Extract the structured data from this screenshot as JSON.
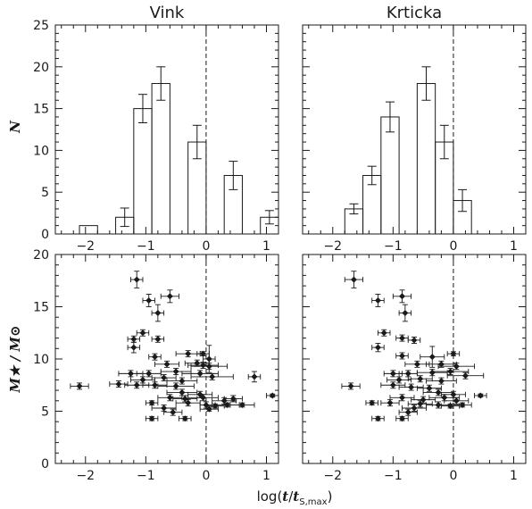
{
  "figure": {
    "xlabel_prefix": "log(",
    "xlabel_t": "t",
    "xlabel_slash": "/",
    "xlabel_ts": "t",
    "xlabel_sub": "S,max",
    "xlabel_suffix": ")",
    "ylabel_top": "N",
    "ylabel_bottom": "M★ / M⊙"
  },
  "chart_data": [
    {
      "type": "bar",
      "title": "Vink",
      "ylabel": "N",
      "xlim": [
        -2.5,
        1.2
      ],
      "ylim": [
        0,
        25
      ],
      "bins": [
        [
          -2.1,
          -1.8
        ],
        [
          -1.5,
          -1.2
        ],
        [
          -1.2,
          -0.9
        ],
        [
          -0.9,
          -0.6
        ],
        [
          -0.3,
          0.0
        ],
        [
          0.3,
          0.6
        ],
        [
          0.9,
          1.2
        ]
      ],
      "values": [
        1,
        2,
        15,
        18,
        11,
        7,
        2
      ],
      "errors": [
        0,
        1.1,
        1.7,
        2.0,
        2.0,
        1.7,
        0.8
      ],
      "reference_line": 0,
      "xticks": [
        -2,
        -1,
        0,
        1
      ],
      "yticks": [
        0,
        5,
        10,
        15,
        20,
        25
      ]
    },
    {
      "type": "bar",
      "title": "Krticka",
      "xlim": [
        -2.5,
        1.2
      ],
      "ylim": [
        0,
        25
      ],
      "bins": [
        [
          -1.8,
          -1.5
        ],
        [
          -1.5,
          -1.2
        ],
        [
          -1.2,
          -0.9
        ],
        [
          -0.6,
          -0.3
        ],
        [
          -0.3,
          0.0
        ],
        [
          0.0,
          0.3
        ]
      ],
      "values": [
        3,
        7,
        14,
        18,
        11,
        4
      ],
      "errors": [
        0.6,
        1.1,
        1.8,
        2.0,
        2.0,
        1.3
      ],
      "reference_line": 0,
      "xticks": [
        -2,
        -1,
        0,
        1
      ],
      "yticks": [
        0,
        5,
        10,
        15,
        20,
        25
      ]
    },
    {
      "type": "scatter",
      "xlabel": "log(t/tS,max)",
      "ylabel": "M★ / M⊙",
      "xlim": [
        -2.5,
        1.2
      ],
      "ylim": [
        0,
        20
      ],
      "reference_line": 0,
      "xticks": [
        -2,
        -1,
        0,
        1
      ],
      "yticks": [
        0,
        5,
        10,
        15,
        20
      ],
      "points": [
        {
          "x": -1.15,
          "y": 17.6,
          "xerr": 0.1,
          "yerr": 0.8
        },
        {
          "x": -0.95,
          "y": 15.6,
          "xerr": 0.1,
          "yerr": 0.6
        },
        {
          "x": -0.6,
          "y": 16.0,
          "xerr": 0.15,
          "yerr": 0.6
        },
        {
          "x": -0.8,
          "y": 14.4,
          "xerr": 0.1,
          "yerr": 0.8
        },
        {
          "x": -1.05,
          "y": 12.5,
          "xerr": 0.1,
          "yerr": 0.3
        },
        {
          "x": -1.2,
          "y": 11.9,
          "xerr": 0.1,
          "yerr": 0.3
        },
        {
          "x": -1.2,
          "y": 11.1,
          "xerr": 0.1,
          "yerr": 0.5
        },
        {
          "x": -0.8,
          "y": 11.9,
          "xerr": 0.1,
          "yerr": 0.3
        },
        {
          "x": -0.3,
          "y": 10.5,
          "xerr": 0.2,
          "yerr": 0.3
        },
        {
          "x": -0.05,
          "y": 10.5,
          "xerr": 0.1,
          "yerr": 0.2
        },
        {
          "x": 0.05,
          "y": 10.0,
          "xerr": 0.1,
          "yerr": 1.3
        },
        {
          "x": -0.85,
          "y": 10.2,
          "xerr": 0.1,
          "yerr": 0.3
        },
        {
          "x": -0.65,
          "y": 9.5,
          "xerr": 0.2,
          "yerr": 0.3
        },
        {
          "x": -0.15,
          "y": 9.6,
          "xerr": 0.2,
          "yerr": 0.3
        },
        {
          "x": -0.05,
          "y": 9.4,
          "xerr": 0.25,
          "yerr": 0.3
        },
        {
          "x": 0.05,
          "y": 9.3,
          "xerr": 0.3,
          "yerr": 0.3
        },
        {
          "x": -1.25,
          "y": 8.6,
          "xerr": 0.2,
          "yerr": 0.3
        },
        {
          "x": -0.95,
          "y": 8.6,
          "xerr": 0.2,
          "yerr": 0.3
        },
        {
          "x": -0.5,
          "y": 8.8,
          "xerr": 0.25,
          "yerr": 0.3
        },
        {
          "x": -0.1,
          "y": 8.6,
          "xerr": 0.3,
          "yerr": 0.3
        },
        {
          "x": 0.1,
          "y": 8.3,
          "xerr": 0.35,
          "yerr": 0.3
        },
        {
          "x": 0.8,
          "y": 8.3,
          "xerr": 0.1,
          "yerr": 0.5
        },
        {
          "x": -1.05,
          "y": 8.0,
          "xerr": 0.2,
          "yerr": 0.3
        },
        {
          "x": -0.7,
          "y": 8.2,
          "xerr": 0.2,
          "yerr": 0.3
        },
        {
          "x": -0.4,
          "y": 7.9,
          "xerr": 0.25,
          "yerr": 0.3
        },
        {
          "x": -1.45,
          "y": 7.6,
          "xerr": 0.15,
          "yerr": 0.3
        },
        {
          "x": -1.15,
          "y": 7.5,
          "xerr": 0.2,
          "yerr": 0.3
        },
        {
          "x": -0.85,
          "y": 7.5,
          "xerr": 0.2,
          "yerr": 0.3
        },
        {
          "x": -0.5,
          "y": 7.4,
          "xerr": 0.3,
          "yerr": 0.3
        },
        {
          "x": -2.1,
          "y": 7.4,
          "xerr": 0.15,
          "yerr": 0.3
        },
        {
          "x": -0.4,
          "y": 6.8,
          "xerr": 0.25,
          "yerr": 0.3
        },
        {
          "x": -0.1,
          "y": 6.6,
          "xerr": 0.2,
          "yerr": 0.3
        },
        {
          "x": 1.1,
          "y": 6.5,
          "xerr": 0.1,
          "yerr": 0.15
        },
        {
          "x": -0.6,
          "y": 6.3,
          "xerr": 0.2,
          "yerr": 0.3
        },
        {
          "x": -0.35,
          "y": 6.2,
          "xerr": 0.2,
          "yerr": 0.3
        },
        {
          "x": -0.05,
          "y": 6.3,
          "xerr": 0.25,
          "yerr": 0.3
        },
        {
          "x": 0.3,
          "y": 6.0,
          "xerr": 0.2,
          "yerr": 0.3
        },
        {
          "x": 0.45,
          "y": 6.2,
          "xerr": 0.15,
          "yerr": 0.3
        },
        {
          "x": -0.9,
          "y": 5.8,
          "xerr": 0.1,
          "yerr": 0.2
        },
        {
          "x": -0.3,
          "y": 5.8,
          "xerr": 0.2,
          "yerr": 0.3
        },
        {
          "x": 0.0,
          "y": 5.6,
          "xerr": 0.1,
          "yerr": 0.3
        },
        {
          "x": 0.15,
          "y": 5.5,
          "xerr": 0.15,
          "yerr": 0.2
        },
        {
          "x": 0.35,
          "y": 5.6,
          "xerr": 0.2,
          "yerr": 0.2
        },
        {
          "x": 0.6,
          "y": 5.6,
          "xerr": 0.2,
          "yerr": 0.2
        },
        {
          "x": -0.7,
          "y": 5.3,
          "xerr": 0.2,
          "yerr": 0.3
        },
        {
          "x": 0.05,
          "y": 5.2,
          "xerr": 0.15,
          "yerr": 0.2
        },
        {
          "x": -0.55,
          "y": 4.9,
          "xerr": 0.15,
          "yerr": 0.3
        },
        {
          "x": -0.9,
          "y": 4.3,
          "xerr": 0.1,
          "yerr": 0.2
        },
        {
          "x": -0.35,
          "y": 4.3,
          "xerr": 0.1,
          "yerr": 0.2
        }
      ]
    },
    {
      "type": "scatter",
      "xlim": [
        -2.5,
        1.2
      ],
      "ylim": [
        0,
        20
      ],
      "reference_line": 0,
      "xticks": [
        -2,
        -1,
        0,
        1
      ],
      "yticks": [
        0,
        5,
        10,
        15,
        20
      ],
      "points": [
        {
          "x": -1.65,
          "y": 17.6,
          "xerr": 0.15,
          "yerr": 0.8
        },
        {
          "x": -1.25,
          "y": 15.6,
          "xerr": 0.1,
          "yerr": 0.6
        },
        {
          "x": -0.85,
          "y": 16.0,
          "xerr": 0.15,
          "yerr": 0.6
        },
        {
          "x": -0.8,
          "y": 14.4,
          "xerr": 0.1,
          "yerr": 0.8
        },
        {
          "x": -1.15,
          "y": 12.5,
          "xerr": 0.1,
          "yerr": 0.3
        },
        {
          "x": -1.25,
          "y": 11.1,
          "xerr": 0.1,
          "yerr": 0.4
        },
        {
          "x": -0.85,
          "y": 12.0,
          "xerr": 0.1,
          "yerr": 0.3
        },
        {
          "x": -0.65,
          "y": 11.8,
          "xerr": 0.1,
          "yerr": 0.3
        },
        {
          "x": -0.85,
          "y": 10.3,
          "xerr": 0.1,
          "yerr": 0.3
        },
        {
          "x": -0.35,
          "y": 10.2,
          "xerr": 0.2,
          "yerr": 1.0
        },
        {
          "x": 0.0,
          "y": 10.5,
          "xerr": 0.1,
          "yerr": 0.2
        },
        {
          "x": -0.2,
          "y": 9.5,
          "xerr": 0.25,
          "yerr": 0.3
        },
        {
          "x": 0.05,
          "y": 9.3,
          "xerr": 0.3,
          "yerr": 0.3
        },
        {
          "x": -0.6,
          "y": 9.5,
          "xerr": 0.2,
          "yerr": 0.3
        },
        {
          "x": -1.0,
          "y": 8.6,
          "xerr": 0.15,
          "yerr": 0.3
        },
        {
          "x": -0.75,
          "y": 8.6,
          "xerr": 0.15,
          "yerr": 0.3
        },
        {
          "x": -0.35,
          "y": 8.7,
          "xerr": 0.25,
          "yerr": 0.3
        },
        {
          "x": -0.05,
          "y": 8.8,
          "xerr": 0.3,
          "yerr": 0.3
        },
        {
          "x": 0.2,
          "y": 8.4,
          "xerr": 0.3,
          "yerr": 0.3
        },
        {
          "x": -0.9,
          "y": 8.0,
          "xerr": 0.2,
          "yerr": 0.3
        },
        {
          "x": -0.55,
          "y": 8.1,
          "xerr": 0.2,
          "yerr": 0.3
        },
        {
          "x": -0.2,
          "y": 7.9,
          "xerr": 0.25,
          "yerr": 0.3
        },
        {
          "x": -1.0,
          "y": 7.5,
          "xerr": 0.2,
          "yerr": 0.3
        },
        {
          "x": -0.7,
          "y": 7.3,
          "xerr": 0.2,
          "yerr": 0.3
        },
        {
          "x": -0.4,
          "y": 7.2,
          "xerr": 0.2,
          "yerr": 0.3
        },
        {
          "x": -1.7,
          "y": 7.4,
          "xerr": 0.15,
          "yerr": 0.3
        },
        {
          "x": -0.25,
          "y": 6.8,
          "xerr": 0.25,
          "yerr": 0.3
        },
        {
          "x": 0.0,
          "y": 6.6,
          "xerr": 0.2,
          "yerr": 0.3
        },
        {
          "x": 0.45,
          "y": 6.5,
          "xerr": 0.1,
          "yerr": 0.15
        },
        {
          "x": -0.85,
          "y": 6.3,
          "xerr": 0.2,
          "yerr": 0.3
        },
        {
          "x": -0.5,
          "y": 6.1,
          "xerr": 0.2,
          "yerr": 0.3
        },
        {
          "x": -0.15,
          "y": 6.3,
          "xerr": 0.25,
          "yerr": 0.3
        },
        {
          "x": 0.05,
          "y": 6.0,
          "xerr": 0.2,
          "yerr": 0.3
        },
        {
          "x": -1.35,
          "y": 5.8,
          "xerr": 0.1,
          "yerr": 0.2
        },
        {
          "x": -1.05,
          "y": 5.8,
          "xerr": 0.15,
          "yerr": 0.3
        },
        {
          "x": -0.55,
          "y": 5.7,
          "xerr": 0.2,
          "yerr": 0.3
        },
        {
          "x": -0.25,
          "y": 5.6,
          "xerr": 0.2,
          "yerr": 0.3
        },
        {
          "x": -0.05,
          "y": 5.5,
          "xerr": 0.15,
          "yerr": 0.2
        },
        {
          "x": 0.15,
          "y": 5.6,
          "xerr": 0.15,
          "yerr": 0.2
        },
        {
          "x": -0.65,
          "y": 5.3,
          "xerr": 0.2,
          "yerr": 0.3
        },
        {
          "x": -0.75,
          "y": 4.9,
          "xerr": 0.15,
          "yerr": 0.3
        },
        {
          "x": -1.25,
          "y": 4.3,
          "xerr": 0.1,
          "yerr": 0.2
        },
        {
          "x": -0.85,
          "y": 4.3,
          "xerr": 0.1,
          "yerr": 0.2
        }
      ]
    }
  ]
}
